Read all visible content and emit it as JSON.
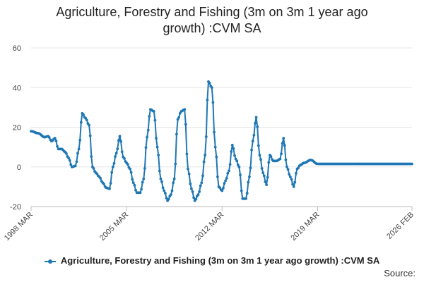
{
  "chart_data": {
    "type": "line",
    "title_lines": [
      "Agriculture, Forestry and Fishing (3m on 3m 1 year ago",
      "growth) :CVM SA"
    ],
    "xlabel": "",
    "ylabel": "",
    "ylim": [
      -20,
      60
    ],
    "yticks": [
      "60",
      "40",
      "20",
      "0",
      "-20"
    ],
    "xticks": [
      "1998 MAR",
      "2005 MAR",
      "2012 MAR",
      "2019 MAR",
      "2026 FEB"
    ],
    "x_start": "1998 MAR",
    "x_end": "2026 FEB",
    "grid": "horizontal",
    "legend_position": "bottom",
    "series": [
      {
        "name": "Agriculture, Forestry and Fishing (3m on 3m 1 year ago growth) :CVM SA",
        "color": "#1f77b4",
        "anchors": [
          [
            "1998 MAR",
            18
          ],
          [
            "1998 SEP",
            17
          ],
          [
            "1999 MAR",
            15
          ],
          [
            "1999 JUN",
            15.5
          ],
          [
            "1999 SEP",
            13
          ],
          [
            "1999 DEC",
            14.5
          ],
          [
            "2000 MAR",
            9
          ],
          [
            "2000 JUN",
            9
          ],
          [
            "2000 SEP",
            7.5
          ],
          [
            "2000 DEC",
            4.5
          ],
          [
            "2001 MAR",
            0
          ],
          [
            "2001 JUN",
            0.5
          ],
          [
            "2001 SEP",
            9
          ],
          [
            "2001 DEC",
            27
          ],
          [
            "2002 MAR",
            24.5
          ],
          [
            "2002 JUN",
            21
          ],
          [
            "2002 SEP",
            0
          ],
          [
            "2002 DEC",
            -3
          ],
          [
            "2003 MAR",
            -5
          ],
          [
            "2003 JUN",
            -8
          ],
          [
            "2003 SEP",
            -10.5
          ],
          [
            "2003 DEC",
            -11
          ],
          [
            "2004 MAR",
            0
          ],
          [
            "2004 JUN",
            7
          ],
          [
            "2004 SEP",
            15.5
          ],
          [
            "2004 DEC",
            5
          ],
          [
            "2005 MAR",
            2
          ],
          [
            "2005 JUN",
            -1
          ],
          [
            "2005 SEP",
            -8
          ],
          [
            "2005 DEC",
            -13
          ],
          [
            "2006 MAR",
            -13
          ],
          [
            "2006 JUN",
            -6
          ],
          [
            "2006 SEP",
            15
          ],
          [
            "2006 DEC",
            29
          ],
          [
            "2007 MAR",
            28
          ],
          [
            "2007 JUN",
            10
          ],
          [
            "2007 SEP",
            -6
          ],
          [
            "2007 DEC",
            -12
          ],
          [
            "2008 MAR",
            -17
          ],
          [
            "2008 JUN",
            -14
          ],
          [
            "2008 SEP",
            -6
          ],
          [
            "2008 DEC",
            24
          ],
          [
            "2009 MAR",
            28
          ],
          [
            "2009 JUN",
            29
          ],
          [
            "2009 SEP",
            -1
          ],
          [
            "2009 DEC",
            -11
          ],
          [
            "2010 MAR",
            -17
          ],
          [
            "2010 JUN",
            -14
          ],
          [
            "2010 SEP",
            -8
          ],
          [
            "2010 DEC",
            6
          ],
          [
            "2011 MAR",
            43
          ],
          [
            "2011 JUN",
            40
          ],
          [
            "2011 SEP",
            10
          ],
          [
            "2011 DEC",
            -10
          ],
          [
            "2012 MAR",
            -12
          ],
          [
            "2012 JUN",
            -7
          ],
          [
            "2012 SEP",
            -2
          ],
          [
            "2012 DEC",
            11
          ],
          [
            "2013 MAR",
            4
          ],
          [
            "2013 JUN",
            0
          ],
          [
            "2013 SEP",
            -16
          ],
          [
            "2013 DEC",
            -16
          ],
          [
            "2014 MAR",
            -5
          ],
          [
            "2014 JUN",
            13
          ],
          [
            "2014 SEP",
            25
          ],
          [
            "2014 DEC",
            6
          ],
          [
            "2015 MAR",
            -3
          ],
          [
            "2015 JUN",
            -9
          ],
          [
            "2015 SEP",
            6
          ],
          [
            "2015 DEC",
            3
          ],
          [
            "2016 MAR",
            3
          ],
          [
            "2016 JUN",
            4
          ],
          [
            "2016 SEP",
            14.5
          ],
          [
            "2016 DEC",
            0
          ],
          [
            "2017 MAR",
            -5
          ],
          [
            "2017 JUN",
            -10
          ],
          [
            "2017 SEP",
            -1
          ],
          [
            "2017 DEC",
            1
          ],
          [
            "2018 MAR",
            2
          ],
          [
            "2018 SEP",
            3.5
          ],
          [
            "2019 MAR",
            1.5
          ],
          [
            "2026 FEB",
            1.5
          ]
        ]
      }
    ]
  },
  "legend": {
    "label": "Agriculture, Forestry and Fishing (3m on 3m 1 year ago growth) :CVM SA"
  },
  "source": {
    "label": "Source:"
  }
}
